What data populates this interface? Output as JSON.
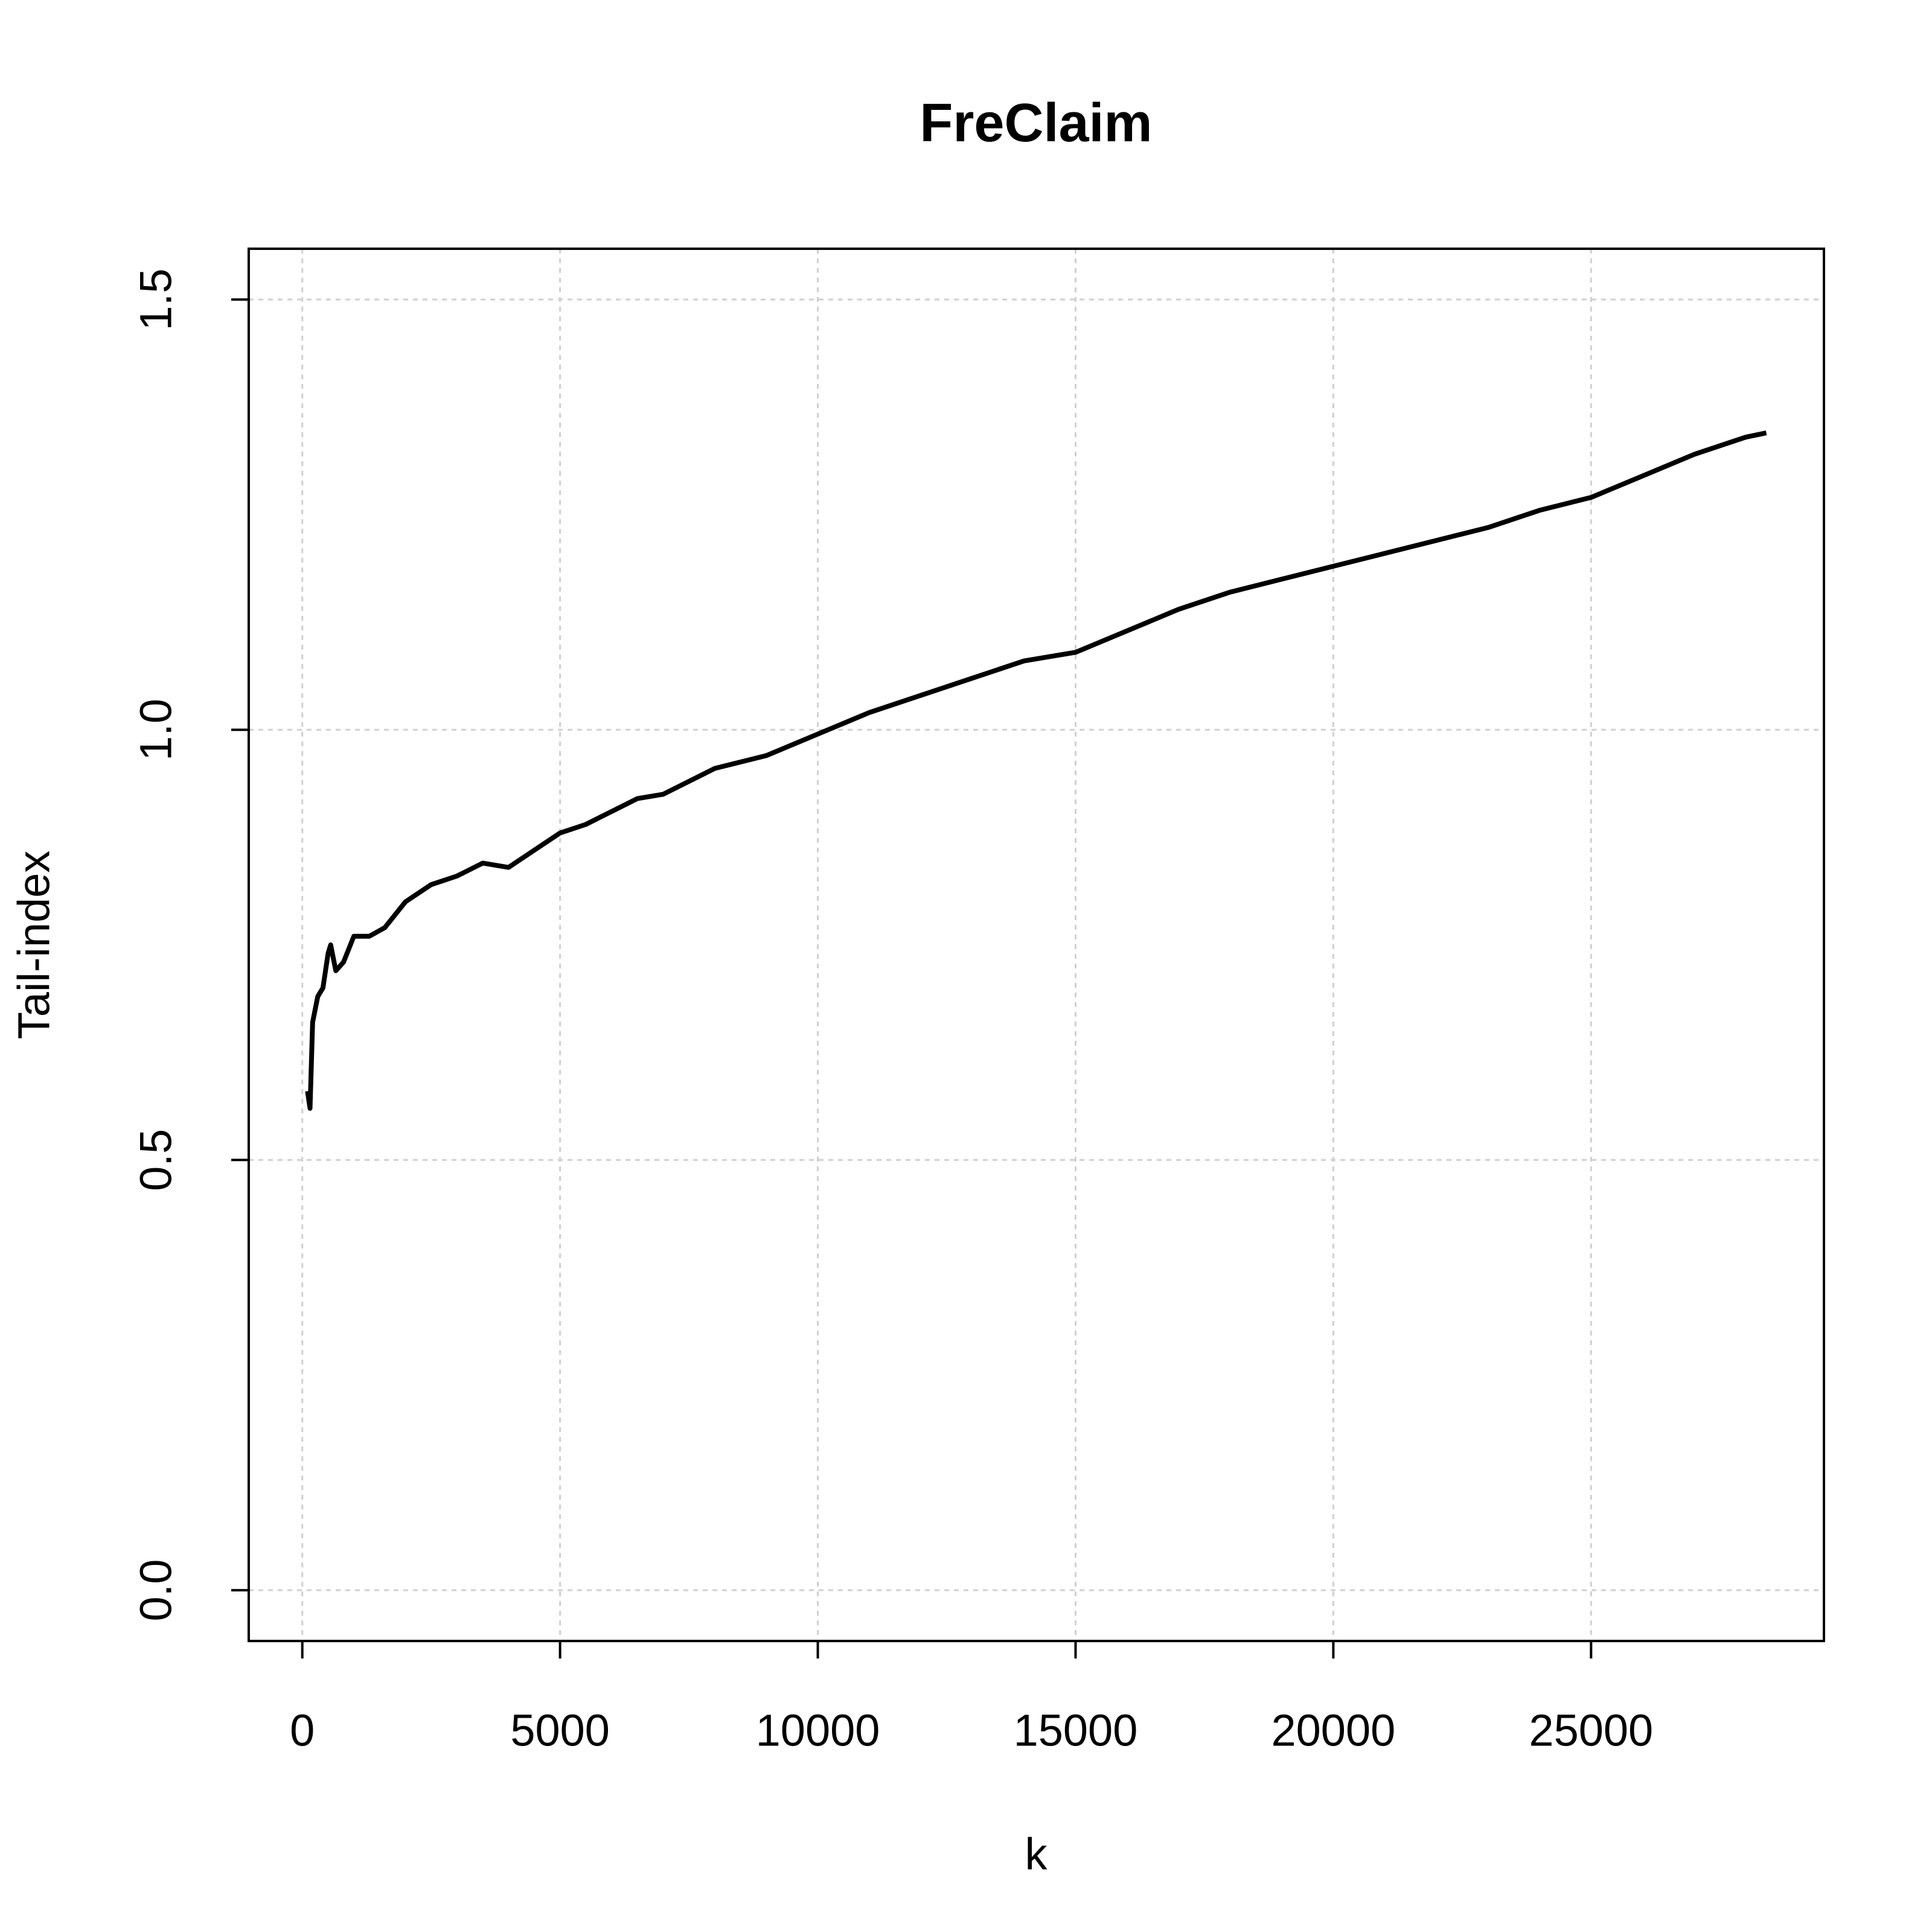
{
  "chart_data": {
    "type": "line",
    "title": "FreClaim",
    "x_label": "k",
    "y_label": "Tail-index",
    "x": [
      100,
      150,
      200,
      300,
      400,
      500,
      550,
      650,
      800,
      1000,
      1300,
      1600,
      2000,
      2500,
      3000,
      3500,
      4000,
      4500,
      5000,
      5500,
      6000,
      6500,
      7000,
      7500,
      8000,
      9000,
      10000,
      11000,
      12000,
      13000,
      14000,
      15000,
      16000,
      17000,
      18000,
      19000,
      20000,
      21000,
      22000,
      23000,
      24000,
      25000,
      26000,
      27000,
      28000,
      28400
    ],
    "series": [
      {
        "color": "#000000",
        "values": [
          0.58,
          0.56,
          0.66,
          0.69,
          0.7,
          0.74,
          0.75,
          0.72,
          0.73,
          0.76,
          0.76,
          0.77,
          0.8,
          0.82,
          0.83,
          0.845,
          0.84,
          0.86,
          0.88,
          0.89,
          0.905,
          0.92,
          0.925,
          0.94,
          0.955,
          0.97,
          0.995,
          1.02,
          1.04,
          1.06,
          1.08,
          1.09,
          1.115,
          1.14,
          1.16,
          1.175,
          1.19,
          1.205,
          1.22,
          1.235,
          1.255,
          1.27,
          1.295,
          1.32,
          1.34,
          1.345
        ]
      }
    ],
    "xlim": [
      -1039,
      29517
    ],
    "ylim": [
      -0.059,
      1.559
    ],
    "xticks": [
      0,
      5000,
      10000,
      15000,
      20000,
      25000
    ],
    "yticks": [
      {
        "value": 0,
        "label": "0.0"
      },
      0.5,
      {
        "value": 1,
        "label": "1.0"
      },
      1.5
    ],
    "grid": true
  }
}
